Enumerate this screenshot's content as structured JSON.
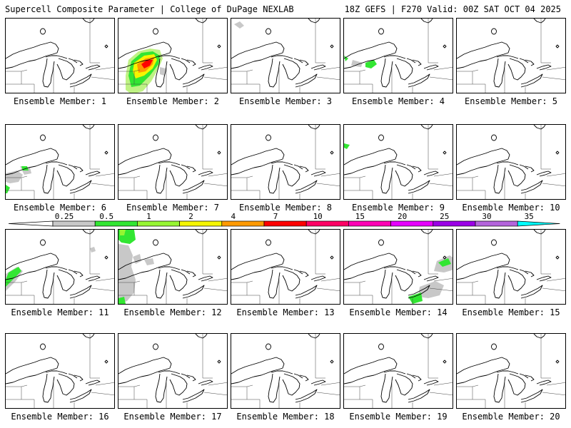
{
  "header": {
    "left_title": "Supercell Composite Parameter | College of DuPage NEXLAB",
    "right_title": "18Z GEFS | F270 Valid: 00Z SAT OCT 04 2025"
  },
  "member_label_prefix": "Ensemble Member: ",
  "members": [
    {
      "id": 1,
      "label": "Ensemble Member: 1"
    },
    {
      "id": 2,
      "label": "Ensemble Member: 2"
    },
    {
      "id": 3,
      "label": "Ensemble Member: 3"
    },
    {
      "id": 4,
      "label": "Ensemble Member: 4"
    },
    {
      "id": 5,
      "label": "Ensemble Member: 5"
    },
    {
      "id": 6,
      "label": "Ensemble Member: 6"
    },
    {
      "id": 7,
      "label": "Ensemble Member: 7"
    },
    {
      "id": 8,
      "label": "Ensemble Member: 8"
    },
    {
      "id": 9,
      "label": "Ensemble Member: 9"
    },
    {
      "id": 10,
      "label": "Ensemble Member: 10"
    },
    {
      "id": 11,
      "label": "Ensemble Member: 11"
    },
    {
      "id": 12,
      "label": "Ensemble Member: 12"
    },
    {
      "id": 13,
      "label": "Ensemble Member: 13"
    },
    {
      "id": 14,
      "label": "Ensemble Member: 14"
    },
    {
      "id": 15,
      "label": "Ensemble Member: 15"
    },
    {
      "id": 16,
      "label": "Ensemble Member: 16"
    },
    {
      "id": 17,
      "label": "Ensemble Member: 17"
    },
    {
      "id": 18,
      "label": "Ensemble Member: 18"
    },
    {
      "id": 19,
      "label": "Ensemble Member: 19"
    },
    {
      "id": 20,
      "label": "Ensemble Member: 20"
    }
  ],
  "colorbar": {
    "labels": [
      "0.25",
      "0.5",
      "1",
      "2",
      "4",
      "7",
      "10",
      "15",
      "20",
      "25",
      "30",
      "35"
    ],
    "colors": [
      "#c8c8c8",
      "#32e632",
      "#96f532",
      "#f5f500",
      "#ff9900",
      "#ff0000",
      "#ff0064",
      "#ff00b4",
      "#e600ff",
      "#9b00e6",
      "#b464dc",
      "#00ffff"
    ]
  }
}
